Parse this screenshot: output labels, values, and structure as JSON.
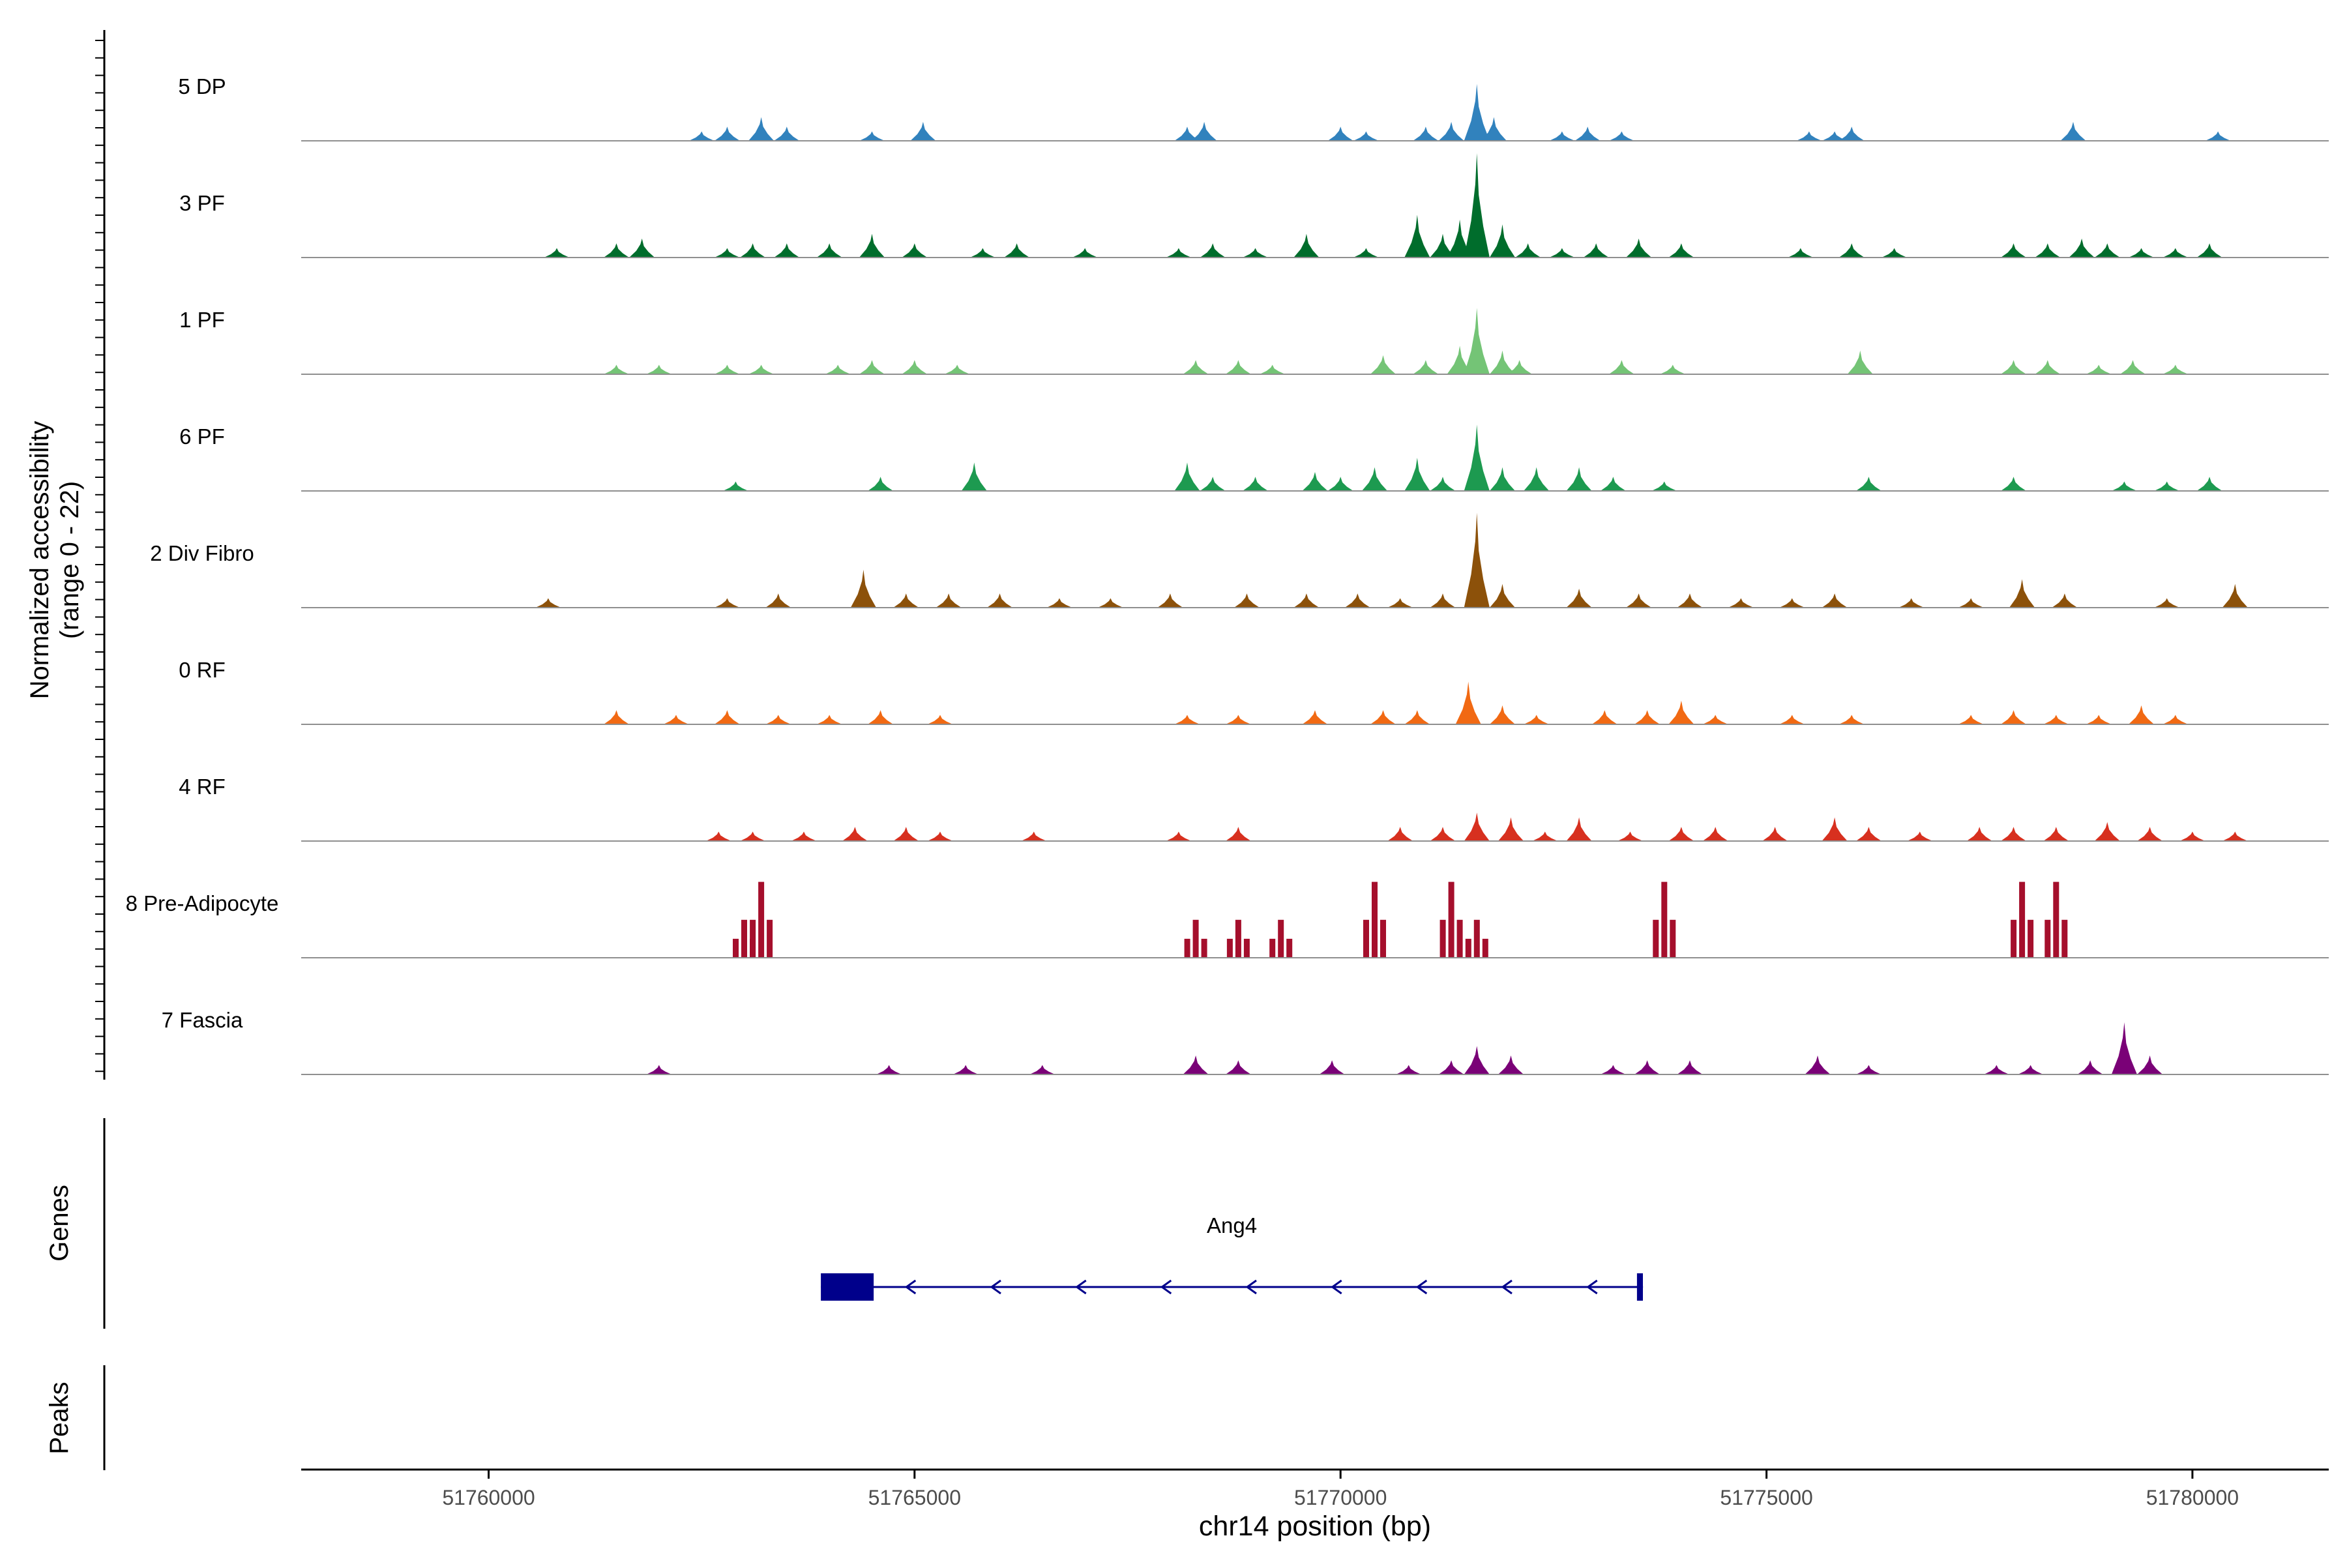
{
  "chart_data": {
    "type": "area",
    "title": "",
    "chromosome": "chr14",
    "xlabel": "chr14 position (bp)",
    "ylabel_line1": "Normalized accessibility",
    "ylabel_line2": "(range 0 - 22)",
    "ylim": [
      0,
      22
    ],
    "xlim": [
      51757800,
      51781600
    ],
    "xticks": [
      51760000,
      51765000,
      51770000,
      51775000,
      51780000
    ],
    "xtick_labels": [
      "51760000",
      "51765000",
      "51770000",
      "51775000",
      "51780000"
    ],
    "panel_labels": {
      "genes": "Genes",
      "peaks": "Peaks"
    },
    "tracks": [
      {
        "name": "5 DP",
        "color": "#3182BD",
        "peaks": [
          [
            51762500,
            2
          ],
          [
            51762800,
            3
          ],
          [
            51763200,
            5
          ],
          [
            51763500,
            3
          ],
          [
            51764500,
            2
          ],
          [
            51765100,
            4
          ],
          [
            51768200,
            3
          ],
          [
            51768400,
            4
          ],
          [
            51770000,
            3
          ],
          [
            51770300,
            2
          ],
          [
            51771000,
            3
          ],
          [
            51771300,
            4
          ],
          [
            51771600,
            12
          ],
          [
            51771800,
            5
          ],
          [
            51772600,
            2
          ],
          [
            51772900,
            3
          ],
          [
            51773300,
            2
          ],
          [
            51775500,
            2
          ],
          [
            51775800,
            2
          ],
          [
            51776000,
            3
          ],
          [
            51778600,
            4
          ],
          [
            51780300,
            2
          ]
        ]
      },
      {
        "name": "3 PF",
        "color": "#006D2C",
        "peaks": [
          [
            51760800,
            2
          ],
          [
            51761500,
            3
          ],
          [
            51761800,
            4
          ],
          [
            51762800,
            2
          ],
          [
            51763100,
            3
          ],
          [
            51763500,
            3
          ],
          [
            51764000,
            3
          ],
          [
            51764500,
            5
          ],
          [
            51765000,
            3
          ],
          [
            51765800,
            2
          ],
          [
            51766200,
            3
          ],
          [
            51767000,
            2
          ],
          [
            51768100,
            2
          ],
          [
            51768500,
            3
          ],
          [
            51769000,
            2
          ],
          [
            51769600,
            5
          ],
          [
            51770300,
            2
          ],
          [
            51770900,
            9
          ],
          [
            51771200,
            5
          ],
          [
            51771400,
            8
          ],
          [
            51771600,
            22
          ],
          [
            51771900,
            7
          ],
          [
            51772200,
            3
          ],
          [
            51772600,
            2
          ],
          [
            51773000,
            3
          ],
          [
            51773500,
            4
          ],
          [
            51774000,
            3
          ],
          [
            51775400,
            2
          ],
          [
            51776000,
            3
          ],
          [
            51776500,
            2
          ],
          [
            51777900,
            3
          ],
          [
            51778300,
            3
          ],
          [
            51778700,
            4
          ],
          [
            51779000,
            3
          ],
          [
            51779400,
            2
          ],
          [
            51779800,
            2
          ],
          [
            51780200,
            3
          ]
        ]
      },
      {
        "name": "1 PF",
        "color": "#74C476",
        "peaks": [
          [
            51761500,
            2
          ],
          [
            51762000,
            2
          ],
          [
            51762800,
            2
          ],
          [
            51763200,
            2
          ],
          [
            51764100,
            2
          ],
          [
            51764500,
            3
          ],
          [
            51765000,
            3
          ],
          [
            51765500,
            2
          ],
          [
            51768300,
            3
          ],
          [
            51768800,
            3
          ],
          [
            51769200,
            2
          ],
          [
            51770500,
            4
          ],
          [
            51771000,
            3
          ],
          [
            51771400,
            6
          ],
          [
            51771600,
            14
          ],
          [
            51771900,
            5
          ],
          [
            51772100,
            3
          ],
          [
            51773300,
            3
          ],
          [
            51773900,
            2
          ],
          [
            51776100,
            5
          ],
          [
            51777900,
            3
          ],
          [
            51778300,
            3
          ],
          [
            51778900,
            2
          ],
          [
            51779300,
            3
          ],
          [
            51779800,
            2
          ]
        ]
      },
      {
        "name": "6 PF",
        "color": "#1D9A50",
        "peaks": [
          [
            51762900,
            2
          ],
          [
            51764600,
            3
          ],
          [
            51765700,
            6
          ],
          [
            51768200,
            6
          ],
          [
            51768500,
            3
          ],
          [
            51769000,
            3
          ],
          [
            51769700,
            4
          ],
          [
            51770000,
            3
          ],
          [
            51770400,
            5
          ],
          [
            51770900,
            7
          ],
          [
            51771200,
            3
          ],
          [
            51771600,
            14
          ],
          [
            51771900,
            5
          ],
          [
            51772300,
            5
          ],
          [
            51772800,
            5
          ],
          [
            51773200,
            3
          ],
          [
            51773800,
            2
          ],
          [
            51776200,
            3
          ],
          [
            51777900,
            3
          ],
          [
            51779200,
            2
          ],
          [
            51779700,
            2
          ],
          [
            51780200,
            3
          ]
        ]
      },
      {
        "name": "2 Div Fibro",
        "color": "#8C510A",
        "peaks": [
          [
            51760700,
            2
          ],
          [
            51762800,
            2
          ],
          [
            51763400,
            3
          ],
          [
            51764400,
            8
          ],
          [
            51764900,
            3
          ],
          [
            51765400,
            3
          ],
          [
            51766000,
            3
          ],
          [
            51766700,
            2
          ],
          [
            51767300,
            2
          ],
          [
            51768000,
            3
          ],
          [
            51768900,
            3
          ],
          [
            51769600,
            3
          ],
          [
            51770200,
            3
          ],
          [
            51770700,
            2
          ],
          [
            51771200,
            3
          ],
          [
            51771600,
            20
          ],
          [
            51771900,
            5
          ],
          [
            51772800,
            4
          ],
          [
            51773500,
            3
          ],
          [
            51774100,
            3
          ],
          [
            51774700,
            2
          ],
          [
            51775300,
            2
          ],
          [
            51775800,
            3
          ],
          [
            51776700,
            2
          ],
          [
            51777400,
            2
          ],
          [
            51778000,
            6
          ],
          [
            51778500,
            3
          ],
          [
            51779700,
            2
          ],
          [
            51780500,
            5
          ]
        ]
      },
      {
        "name": "0 RF",
        "color": "#F16913",
        "peaks": [
          [
            51761500,
            3
          ],
          [
            51762200,
            2
          ],
          [
            51762800,
            3
          ],
          [
            51763400,
            2
          ],
          [
            51764000,
            2
          ],
          [
            51764600,
            3
          ],
          [
            51765300,
            2
          ],
          [
            51768200,
            2
          ],
          [
            51768800,
            2
          ],
          [
            51769700,
            3
          ],
          [
            51770500,
            3
          ],
          [
            51770900,
            3
          ],
          [
            51771500,
            9
          ],
          [
            51771900,
            4
          ],
          [
            51772300,
            2
          ],
          [
            51773100,
            3
          ],
          [
            51773600,
            3
          ],
          [
            51774000,
            5
          ],
          [
            51774400,
            2
          ],
          [
            51775300,
            2
          ],
          [
            51776000,
            2
          ],
          [
            51777400,
            2
          ],
          [
            51777900,
            3
          ],
          [
            51778400,
            2
          ],
          [
            51778900,
            2
          ],
          [
            51779400,
            4
          ],
          [
            51779800,
            2
          ]
        ]
      },
      {
        "name": "4 RF",
        "color": "#D7301F",
        "peaks": [
          [
            51762700,
            2
          ],
          [
            51763100,
            2
          ],
          [
            51763700,
            2
          ],
          [
            51764300,
            3
          ],
          [
            51764900,
            3
          ],
          [
            51765300,
            2
          ],
          [
            51766400,
            2
          ],
          [
            51768100,
            2
          ],
          [
            51768800,
            3
          ],
          [
            51770700,
            3
          ],
          [
            51771200,
            3
          ],
          [
            51771600,
            6
          ],
          [
            51772000,
            5
          ],
          [
            51772400,
            2
          ],
          [
            51772800,
            5
          ],
          [
            51773400,
            2
          ],
          [
            51774000,
            3
          ],
          [
            51774400,
            3
          ],
          [
            51775100,
            3
          ],
          [
            51775800,
            5
          ],
          [
            51776200,
            3
          ],
          [
            51776800,
            2
          ],
          [
            51777500,
            3
          ],
          [
            51777900,
            3
          ],
          [
            51778400,
            3
          ],
          [
            51779000,
            4
          ],
          [
            51779500,
            3
          ],
          [
            51780000,
            2
          ],
          [
            51780500,
            2
          ]
        ]
      },
      {
        "name": "8 Pre-Adipocyte",
        "color": "#A50F2C",
        "peaks": [
          [
            51763000,
            8
          ],
          [
            51763200,
            16
          ],
          [
            51768300,
            8
          ],
          [
            51768800,
            8
          ],
          [
            51769300,
            8
          ],
          [
            51770400,
            16
          ],
          [
            51771300,
            16
          ],
          [
            51771600,
            8
          ],
          [
            51773800,
            16
          ],
          [
            51778000,
            16
          ],
          [
            51778400,
            16
          ]
        ]
      },
      {
        "name": "7 Fascia",
        "color": "#7A0177",
        "peaks": [
          [
            51762000,
            2
          ],
          [
            51764700,
            2
          ],
          [
            51765600,
            2
          ],
          [
            51766500,
            2
          ],
          [
            51768300,
            4
          ],
          [
            51768800,
            3
          ],
          [
            51769900,
            3
          ],
          [
            51770800,
            2
          ],
          [
            51771300,
            3
          ],
          [
            51771600,
            6
          ],
          [
            51772000,
            4
          ],
          [
            51773200,
            2
          ],
          [
            51773600,
            3
          ],
          [
            51774100,
            3
          ],
          [
            51775600,
            4
          ],
          [
            51776200,
            2
          ],
          [
            51777700,
            2
          ],
          [
            51778100,
            2
          ],
          [
            51778800,
            3
          ],
          [
            51779200,
            11
          ],
          [
            51779500,
            4
          ]
        ]
      }
    ],
    "gene": {
      "name": "Ang4",
      "strand": "-",
      "start": 51763900,
      "end": 51773550,
      "exons": [
        [
          51763900,
          51764520
        ],
        [
          51773480,
          51773550
        ]
      ],
      "color": "#00008B"
    }
  }
}
